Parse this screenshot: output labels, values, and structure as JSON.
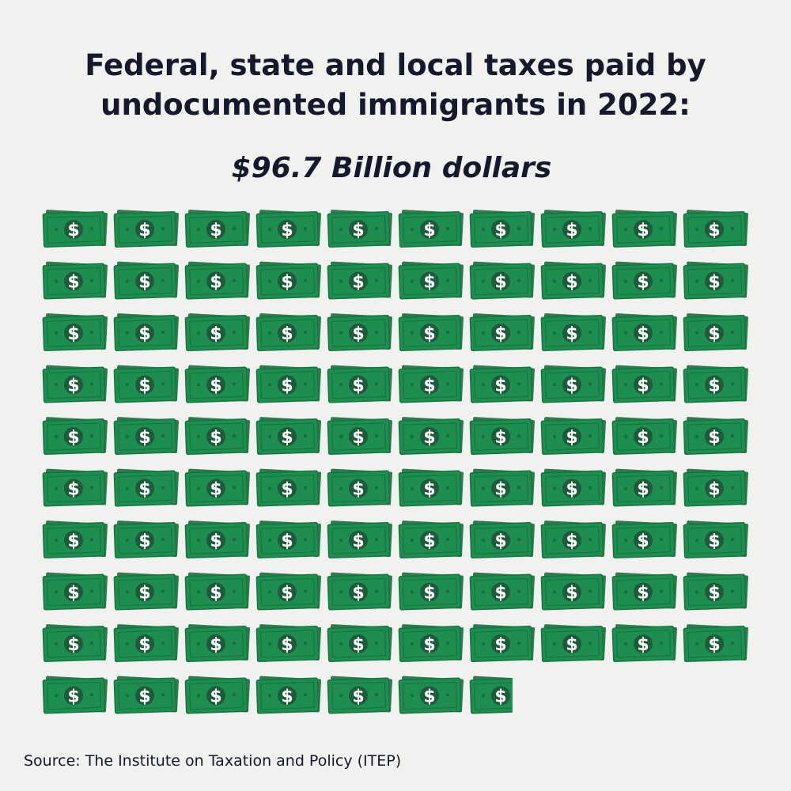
{
  "title_line1": "Federal, state and local taxes paid by",
  "title_line2": "undocumented immigrants in 2022:",
  "colors": {
    "background": "#f1f1ef",
    "bill_back": "#2f7a4e",
    "bill_front": "#1e8e50",
    "bill_border": "#157540",
    "bill_center": "#1d5b3a",
    "bill_dots": "#186d3f",
    "symbol": "#ffffff",
    "text": "#14192b"
  },
  "icon": "dollar-bill-icon",
  "chart_data": {
    "type": "pictograph",
    "title": "Federal, state and local taxes paid by undocumented immigrants in 2022:",
    "subtitle": "$96.7 Billion dollars",
    "value": 96.7,
    "unit": "Billion dollars",
    "icons_per_row": 10,
    "icon_count_full": 96,
    "icon_count_partial": 1,
    "partial_fraction": 0.7,
    "bill_symbol": "$",
    "source": "Source: The Institute on Taxation and Policy (ITEP)"
  }
}
